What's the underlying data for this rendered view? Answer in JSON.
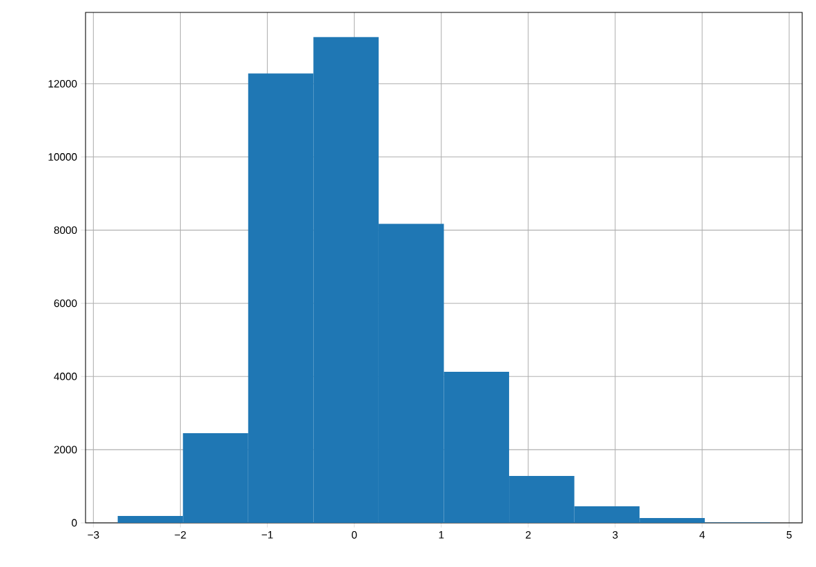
{
  "chart_data": {
    "type": "histogram",
    "color": "#1f77b4",
    "grid": true,
    "bins": [
      -2.72,
      -1.97,
      -1.22,
      -0.47,
      0.28,
      1.03,
      1.78,
      2.53,
      3.28,
      4.03,
      4.78
    ],
    "values": [
      190,
      2450,
      12280,
      13280,
      8170,
      4130,
      1280,
      450,
      130,
      10
    ],
    "xlim": [
      -3.09,
      5.15
    ],
    "ylim": [
      0,
      13950
    ],
    "xticks": [
      {
        "value": -3,
        "label": "−3"
      },
      {
        "value": -2,
        "label": "−2"
      },
      {
        "value": -1,
        "label": "−1"
      },
      0,
      1,
      2,
      3,
      4,
      5
    ],
    "yticks": [
      0,
      2000,
      4000,
      6000,
      8000,
      10000,
      12000
    ]
  }
}
